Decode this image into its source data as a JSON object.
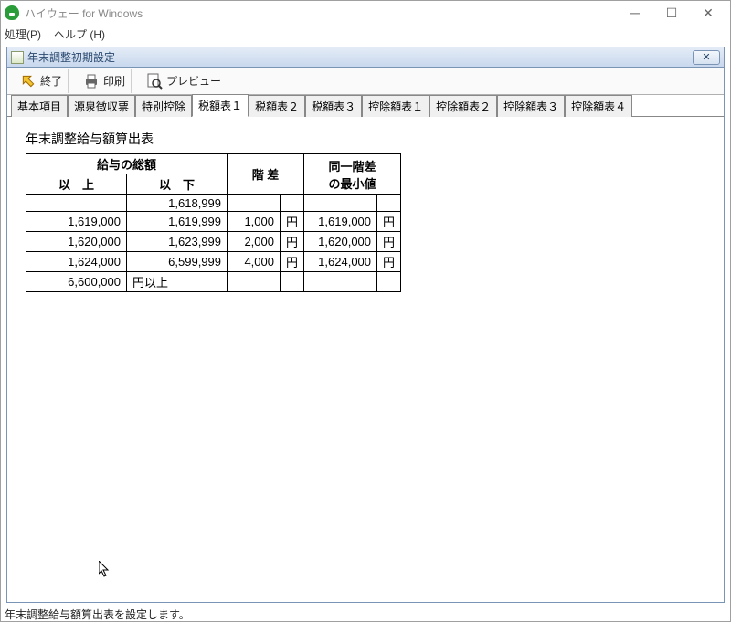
{
  "outer": {
    "title": "ハイウェー for Windows",
    "menu": {
      "process": "処理(P)",
      "help": "ヘルプ (H)"
    }
  },
  "inner": {
    "title": "年末調整初期設定"
  },
  "toolbar": {
    "exit_label": "終了",
    "print_label": "印刷",
    "preview_label": "プレビュー"
  },
  "tabs": {
    "items": [
      {
        "label": "基本項目",
        "active": false
      },
      {
        "label": "源泉徴収票",
        "active": false
      },
      {
        "label": "特別控除",
        "active": false
      },
      {
        "label": "税額表１",
        "active": true
      },
      {
        "label": "税額表２",
        "active": false
      },
      {
        "label": "税額表３",
        "active": false
      },
      {
        "label": "控除額表１",
        "active": false
      },
      {
        "label": "控除額表２",
        "active": false
      },
      {
        "label": "控除額表３",
        "active": false
      },
      {
        "label": "控除額表４",
        "active": false
      }
    ]
  },
  "table": {
    "title": "年末調整給与額算出表",
    "header": {
      "salary_total": "給与の総額",
      "ge": "以　上",
      "le": "以　下",
      "step": "階 差",
      "same_step_min_l1": "同一階差",
      "same_step_min_l2": "の最小値"
    },
    "unit": "円",
    "suffix_above": "円以上",
    "rows": [
      {
        "ge": "",
        "le": "1,618,999",
        "step": "",
        "min": ""
      },
      {
        "ge": "1,619,000",
        "le": "1,619,999",
        "step": "1,000",
        "min": "1,619,000"
      },
      {
        "ge": "1,620,000",
        "le": "1,623,999",
        "step": "2,000",
        "min": "1,620,000"
      },
      {
        "ge": "1,624,000",
        "le": "6,599,999",
        "step": "4,000",
        "min": "1,624,000"
      },
      {
        "ge": "6,600,000",
        "le": "",
        "step": "",
        "min": ""
      }
    ],
    "col_widths": {
      "ge": 110,
      "le": 110,
      "step": 58,
      "unit": 24,
      "min": 80
    }
  },
  "status": "年末調整給与額算出表を設定します。",
  "colors": {
    "titlebar_grad_top": "#e4ecf7",
    "titlebar_grad_bottom": "#c9d8ee",
    "titlebar_border": "#7a94b5",
    "border_gray": "#888888"
  }
}
